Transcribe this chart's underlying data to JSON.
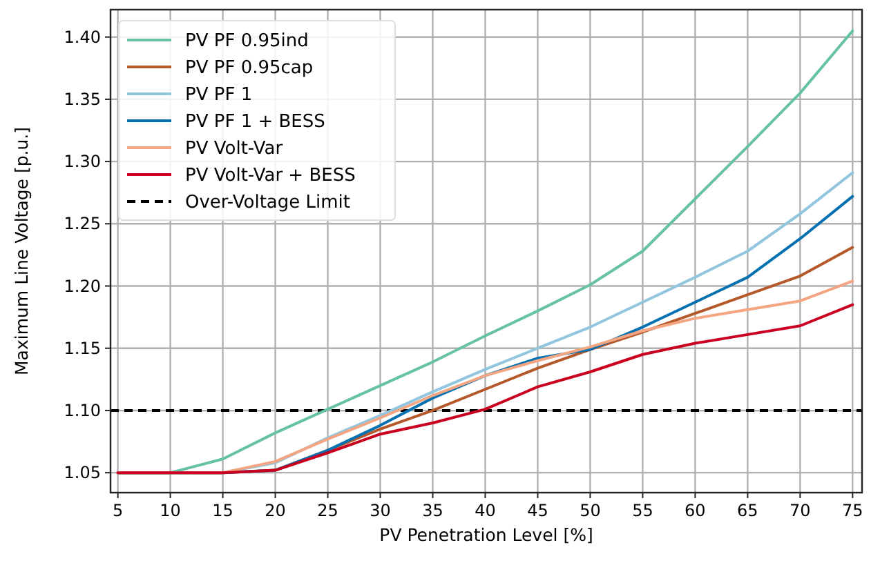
{
  "chart_data": {
    "type": "line",
    "xlabel": "PV Penetration Level [%]",
    "ylabel": "Maximum Line Voltage [p.u.]",
    "x": [
      5,
      10,
      15,
      20,
      25,
      30,
      35,
      40,
      45,
      50,
      55,
      60,
      65,
      70,
      75
    ],
    "xlim": [
      4.3,
      75.9
    ],
    "xticks": [
      5,
      10,
      15,
      20,
      25,
      30,
      35,
      40,
      45,
      50,
      55,
      60,
      65,
      70,
      75
    ],
    "ylim": [
      1.034,
      1.422
    ],
    "yticks": [
      {
        "value": 1.05,
        "label": "1.05"
      },
      {
        "value": 1.1,
        "label": "1.10"
      },
      {
        "value": 1.15,
        "label": "1.15"
      },
      {
        "value": 1.2,
        "label": "1.20"
      },
      {
        "value": 1.25,
        "label": "1.25"
      },
      {
        "value": 1.3,
        "label": "1.30"
      },
      {
        "value": 1.35,
        "label": "1.35"
      },
      {
        "value": 1.4,
        "label": "1.40"
      }
    ],
    "grid": true,
    "legend": "top left",
    "line_style": "solid",
    "marker": "none",
    "series": [
      {
        "name": "PV PF 0.95ind",
        "color": "#66c2a5",
        "values": [
          1.05,
          1.05,
          1.061,
          1.082,
          1.101,
          1.12,
          1.139,
          1.16,
          1.18,
          1.201,
          1.228,
          1.27,
          1.312,
          1.355,
          1.405
        ]
      },
      {
        "name": "PV PF 0.95cap",
        "color": "#b5582a",
        "values": [
          1.05,
          1.05,
          1.05,
          1.052,
          1.068,
          1.085,
          1.1,
          1.117,
          1.134,
          1.149,
          1.163,
          1.178,
          1.193,
          1.208,
          1.231
        ]
      },
      {
        "name": "PV PF 1",
        "color": "#92c5de",
        "values": [
          1.05,
          1.05,
          1.05,
          1.058,
          1.078,
          1.096,
          1.115,
          1.133,
          1.15,
          1.167,
          1.187,
          1.207,
          1.228,
          1.258,
          1.291
        ]
      },
      {
        "name": "PV PF 1 + BESS",
        "color": "#0571b0",
        "values": [
          1.05,
          1.05,
          1.05,
          1.052,
          1.068,
          1.088,
          1.11,
          1.128,
          1.142,
          1.149,
          1.167,
          1.187,
          1.207,
          1.238,
          1.272
        ]
      },
      {
        "name": "PV Volt-Var",
        "color": "#f4a582",
        "values": [
          1.05,
          1.05,
          1.05,
          1.059,
          1.077,
          1.094,
          1.112,
          1.128,
          1.14,
          1.151,
          1.164,
          1.174,
          1.181,
          1.188,
          1.204
        ]
      },
      {
        "name": "PV Volt-Var + BESS",
        "color": "#ca0020",
        "values": [
          1.05,
          1.05,
          1.05,
          1.052,
          1.066,
          1.081,
          1.09,
          1.101,
          1.119,
          1.131,
          1.145,
          1.154,
          1.161,
          1.168,
          1.185
        ]
      }
    ],
    "ref_lines": [
      {
        "axis": "y",
        "value": 1.1,
        "label": "Over-Voltage Limit",
        "color": "#000000",
        "line_style": "dashed"
      }
    ]
  }
}
